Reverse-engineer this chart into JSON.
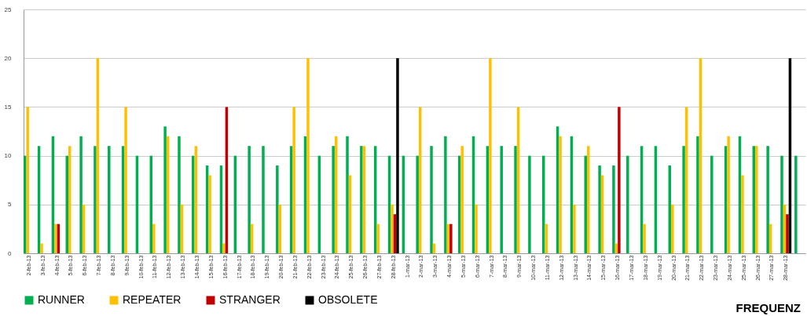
{
  "chart_data": {
    "type": "bar",
    "categories": [
      "2-feb-13",
      "3-feb-13",
      "4-feb-13",
      "5-feb-13",
      "6-feb-13",
      "7-feb-13",
      "8-feb-13",
      "9-feb-13",
      "10-feb-13",
      "11-feb-13",
      "12-feb-13",
      "13-feb-13",
      "14-feb-13",
      "15-feb-13",
      "16-feb-13",
      "17-feb-13",
      "18-feb-13",
      "19-feb-13",
      "20-feb-13",
      "21-feb-13",
      "22-feb-13",
      "23-feb-13",
      "24-feb-13",
      "25-feb-13",
      "26-feb-13",
      "27-feb-13",
      "28-feb-13",
      "1-mar-13",
      "2-mar-13",
      "3-mar-13",
      "4-mar-13",
      "5-mar-13",
      "6-mar-13",
      "7-mar-13",
      "8-mar-13",
      "9-mar-13",
      "10-mar-13",
      "11-mar-13",
      "12-mar-13",
      "13-mar-13",
      "14-mar-13",
      "15-mar-13",
      "16-mar-13",
      "17-mar-13",
      "18-mar-13",
      "19-mar-13",
      "20-mar-13",
      "21-mar-13",
      "22-mar-13",
      "23-mar-13",
      "24-mar-13",
      "25-mar-13",
      "26-mar-13",
      "27-mar-13",
      "28-mar-13",
      null
    ],
    "series": [
      {
        "name": "RUNNER",
        "color": "#00b050",
        "values": [
          10,
          11,
          12,
          10,
          12,
          11,
          11,
          11,
          10,
          10,
          13,
          12,
          10,
          9,
          9,
          10,
          11,
          11,
          9,
          11,
          12,
          10,
          11,
          12,
          11,
          11,
          10,
          10,
          10,
          11,
          12,
          10,
          12,
          11,
          11,
          11,
          10,
          10,
          13,
          12,
          10,
          9,
          9,
          10,
          11,
          11,
          9,
          11,
          12,
          10,
          11,
          12,
          11,
          11,
          10,
          10
        ]
      },
      {
        "name": "REPEATER",
        "color": "#ffc000",
        "values": [
          15,
          1,
          3,
          11,
          5,
          20,
          null,
          15,
          null,
          3,
          12,
          5,
          11,
          8,
          1,
          null,
          3,
          null,
          5,
          15,
          20,
          null,
          12,
          8,
          11,
          3,
          5,
          null,
          15,
          1,
          3,
          11,
          5,
          20,
          null,
          15,
          null,
          3,
          12,
          5,
          11,
          8,
          1,
          null,
          3,
          null,
          5,
          15,
          20,
          null,
          12,
          8,
          11,
          3,
          5,
          null
        ]
      },
      {
        "name": "STRANGER",
        "color": "#c00000",
        "values": [
          null,
          null,
          3,
          null,
          null,
          null,
          null,
          null,
          null,
          null,
          null,
          null,
          null,
          null,
          15,
          null,
          null,
          null,
          null,
          null,
          null,
          null,
          null,
          null,
          null,
          null,
          4,
          null,
          null,
          null,
          3,
          null,
          null,
          null,
          null,
          null,
          null,
          null,
          null,
          null,
          null,
          null,
          15,
          null,
          null,
          null,
          null,
          null,
          null,
          null,
          null,
          null,
          null,
          null,
          4,
          null
        ]
      },
      {
        "name": "OBSOLETE",
        "color": "#000000",
        "values": [
          null,
          null,
          null,
          null,
          null,
          null,
          null,
          null,
          null,
          null,
          null,
          null,
          null,
          null,
          null,
          null,
          null,
          null,
          null,
          null,
          null,
          null,
          null,
          null,
          null,
          null,
          20,
          null,
          null,
          null,
          null,
          null,
          null,
          null,
          null,
          null,
          null,
          null,
          null,
          null,
          null,
          null,
          null,
          null,
          null,
          null,
          null,
          null,
          null,
          null,
          null,
          null,
          null,
          null,
          20,
          null
        ]
      }
    ],
    "ylim": [
      0,
      25
    ],
    "yticks": [
      0,
      5,
      10,
      15,
      20,
      25
    ],
    "grid": "y",
    "legend": "bottom",
    "annotations": [
      "FREQUENZ"
    ]
  }
}
